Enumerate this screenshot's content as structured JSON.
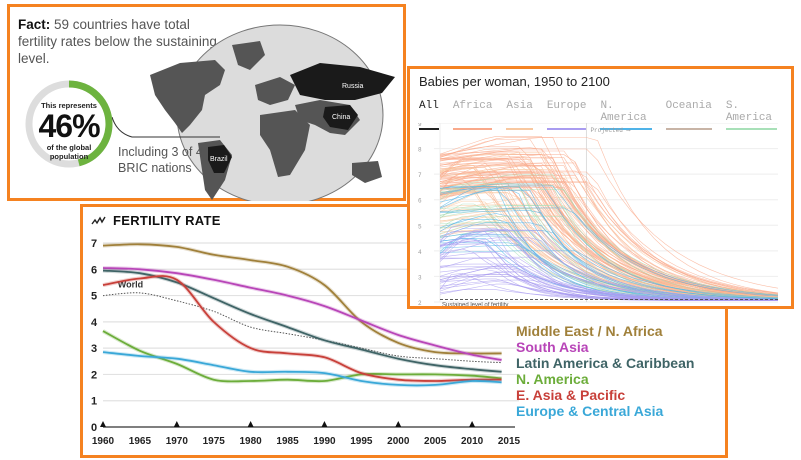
{
  "fact_panel": {
    "fact_label": "Fact:",
    "fact_text": " 59 countries have total fertility rates below the sustaining level.",
    "donut": {
      "top_text": "This represents",
      "percent_text": "46%",
      "bottom_text_1": "of the global",
      "bottom_text_2": "population",
      "fraction": 0.46,
      "fill_color": "#6db33f",
      "track_color": "#dddddd"
    },
    "bric_text_1": "Including 3 of 4",
    "bric_text_2": "BRIC nations",
    "map_labels": [
      "Russia",
      "China",
      "Brazil"
    ]
  },
  "chart_data": [
    {
      "type": "line",
      "title": "Babies per woman, 1950 to 2100",
      "tabs": [
        {
          "label": "All",
          "color": "#222222",
          "active": true
        },
        {
          "label": "Africa",
          "color": "#f9a98b"
        },
        {
          "label": "Asia",
          "color": "#f8c8a0"
        },
        {
          "label": "Europe",
          "color": "#a99cf0"
        },
        {
          "label": "N. America",
          "color": "#4fb3e8"
        },
        {
          "label": "Oceania",
          "color": "#c8b4a6"
        },
        {
          "label": "S. America",
          "color": "#a8e0b8"
        }
      ],
      "x_range": [
        1950,
        2100
      ],
      "ylim": [
        2,
        9
      ],
      "yticks": [
        "2",
        "3",
        "4",
        "5",
        "6",
        "7",
        "8",
        "9"
      ],
      "projected_from": 2015,
      "projected_label": "Projected ⟶",
      "reference_line": {
        "value": 2.1,
        "label": "Sustained level of fertility"
      }
    },
    {
      "type": "line",
      "title": "FERTILITY RATE",
      "x": [
        1960,
        1965,
        1970,
        1975,
        1980,
        1985,
        1990,
        1995,
        2000,
        2005,
        2010,
        2014
      ],
      "xticks": [
        "1960",
        "1965",
        "1970",
        "1975",
        "1980",
        "1985",
        "1990",
        "1995",
        "2000",
        "2005",
        "2010",
        "2015"
      ],
      "xmarkers": [
        1960,
        1970,
        1980,
        1990,
        2000,
        2010
      ],
      "yticks": [
        "0",
        "1",
        "2",
        "3",
        "4",
        "5",
        "6",
        "7"
      ],
      "ylim": [
        0,
        7
      ],
      "xlim": [
        1960,
        2015
      ],
      "series": [
        {
          "name": "Middle East / N. Africa",
          "color": "#a0803a",
          "values": [
            6.9,
            6.95,
            6.85,
            6.55,
            6.35,
            6.1,
            5.4,
            4.0,
            3.2,
            2.85,
            2.8,
            2.8
          ]
        },
        {
          "name": "South Asia",
          "color": "#b845b8",
          "values": [
            6.05,
            6.0,
            5.85,
            5.6,
            5.3,
            5.0,
            4.6,
            4.05,
            3.5,
            3.1,
            2.75,
            2.55
          ]
        },
        {
          "name": "Latin America & Caribbean",
          "color": "#3f6466",
          "values": [
            5.95,
            5.85,
            5.5,
            4.9,
            4.3,
            3.8,
            3.3,
            2.95,
            2.6,
            2.35,
            2.2,
            2.1
          ]
        },
        {
          "name": "N. America",
          "color": "#6cad3a",
          "values": [
            3.65,
            2.9,
            2.4,
            1.8,
            1.75,
            1.8,
            1.75,
            2.0,
            2.0,
            2.0,
            1.95,
            1.85
          ]
        },
        {
          "name": "E. Asia & Pacific",
          "color": "#c8403a",
          "values": [
            5.4,
            5.65,
            5.6,
            4.0,
            3.0,
            2.8,
            2.65,
            2.05,
            1.8,
            1.75,
            1.8,
            1.8
          ]
        },
        {
          "name": "Europe & Central Asia",
          "color": "#3aa8d8",
          "values": [
            2.85,
            2.7,
            2.6,
            2.35,
            2.1,
            2.1,
            2.05,
            1.75,
            1.6,
            1.6,
            1.75,
            1.7
          ]
        }
      ],
      "reference": {
        "name": "World",
        "color": "#555555",
        "values": [
          5.0,
          5.1,
          4.8,
          4.4,
          3.8,
          3.55,
          3.3,
          3.0,
          2.7,
          2.6,
          2.5,
          2.45
        ]
      }
    }
  ]
}
